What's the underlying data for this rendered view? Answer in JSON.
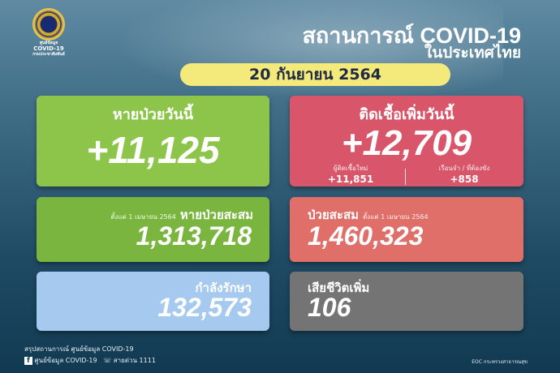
{
  "logo": {
    "line1": "ศูนย์ข้อมูล",
    "line2": "COVID-19",
    "line3": "กรมประชาสัมพันธ์"
  },
  "header": {
    "title": "สถานการณ์ COVID-19",
    "subtitle": "ในประเทศไทย",
    "date": "20 กันยายน 2564"
  },
  "recovered_today": {
    "label": "หายป่วยวันนี้",
    "value": "+11,125"
  },
  "new_cases": {
    "label": "ติดเชื้อเพิ่มวันนี้",
    "value": "+12,709",
    "sub1_label": "ผู้ติดเชื้อใหม่",
    "sub1_value": "+11,851",
    "sub2_label": "เรือนจำ / ที่ต้องขัง",
    "sub2_value": "+858"
  },
  "recovered_total": {
    "label": "หายป่วยสะสม",
    "since": "ตั้งแต่ 1 เมษายน 2564",
    "value": "1,313,718"
  },
  "cases_total": {
    "label": "ป่วยสะสม",
    "since": "ตั้งแต่ 1 เมษายน 2564",
    "value": "1,460,323"
  },
  "treating": {
    "label": "กำลังรักษา",
    "value": "132,573"
  },
  "deaths": {
    "label": "เสียชีวิตเพิ่ม",
    "value": "106"
  },
  "footer": {
    "summary": "สรุปสถานการณ์ ศูนย์ข้อมูล COVID-19",
    "facebook": "ศูนย์ข้อมูล COVID-19",
    "hotline": "สายด่วน 1111",
    "source": "EOC กระทรวงสาธารณสุข"
  },
  "colors": {
    "green": "#8dc54b",
    "red": "#d9556a",
    "blue": "#a5c9ef",
    "gray": "#747474",
    "date_pill": "#f4e97b"
  }
}
